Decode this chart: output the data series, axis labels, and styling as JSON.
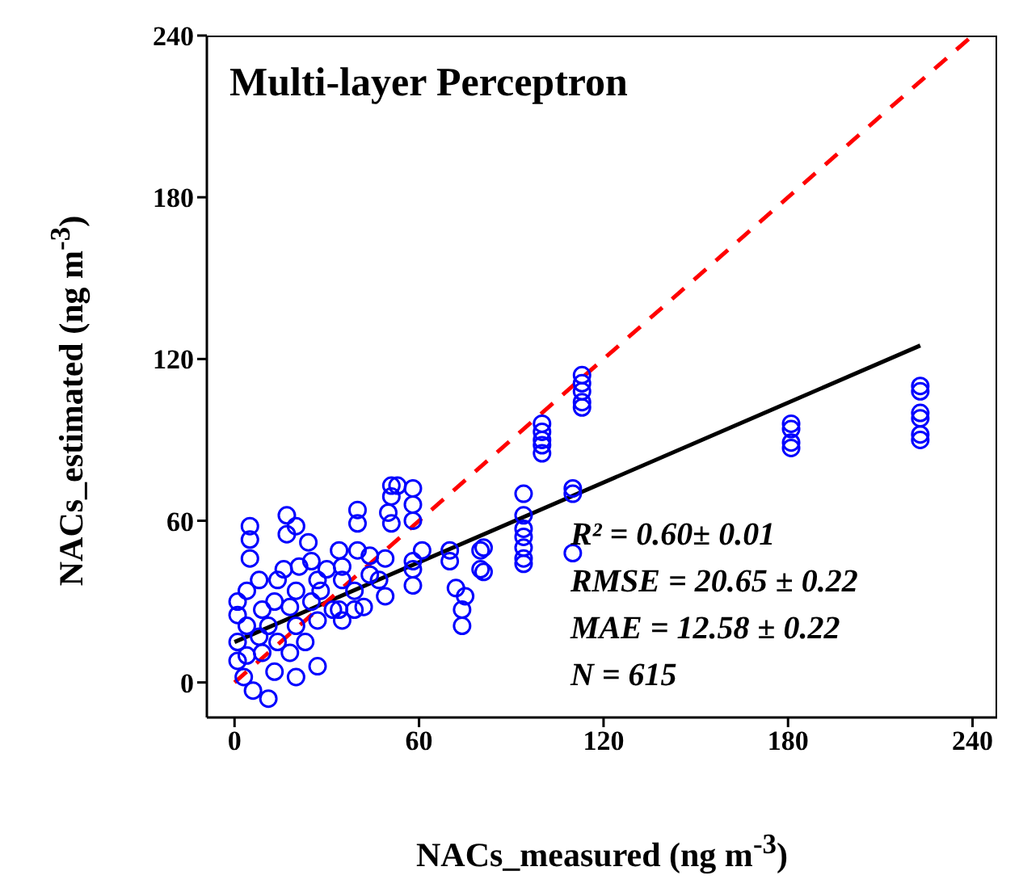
{
  "chart_data": {
    "type": "scatter",
    "title": "Multi-layer Perceptron",
    "xlabel": "NACs_measured (ng m$^{-3}$)",
    "ylabel": "NACs_estimated (ng m$^{-3}$)",
    "xlim": [
      -9,
      248
    ],
    "ylim": [
      -13,
      240
    ],
    "xticks": [
      0,
      60,
      120,
      180,
      240
    ],
    "yticks": [
      0,
      60,
      120,
      180,
      240
    ],
    "grid": false,
    "legend": false,
    "annotations": [
      "R² = 0.60± 0.01",
      "RMSE = 20.65 ± 0.22",
      "MAE = 12.58 ± 0.22",
      "N = 615"
    ],
    "series": [
      {
        "marker": "circle",
        "color": "#0000ff",
        "x": [
          223,
          223,
          223,
          223,
          223,
          223,
          181,
          181,
          181,
          181,
          113,
          113,
          113,
          113,
          113,
          100,
          100,
          100,
          100,
          100,
          110,
          110,
          110,
          94,
          94,
          94,
          94,
          94,
          94,
          94,
          81,
          81,
          5,
          5,
          5,
          17,
          20,
          17,
          40,
          40,
          51,
          53,
          58,
          51,
          58,
          50,
          58,
          51,
          61,
          58,
          58,
          58,
          47,
          49,
          49,
          70,
          70,
          80,
          80,
          72,
          75,
          74,
          74,
          34,
          35,
          40,
          35,
          39,
          32,
          39,
          35,
          24,
          25,
          21,
          16,
          27,
          20,
          25,
          18,
          27,
          20,
          23,
          18,
          27,
          20,
          1,
          4,
          1,
          4,
          1,
          1,
          3,
          6,
          11,
          9,
          11,
          13,
          8,
          14,
          9,
          13,
          4,
          8,
          14,
          42,
          44,
          28,
          30,
          44,
          34
        ],
        "values": [
          110,
          108,
          100,
          98,
          92,
          90,
          96,
          94,
          89,
          87,
          114,
          111,
          108,
          104,
          102,
          96,
          93,
          90,
          88,
          85,
          72,
          70,
          48,
          70,
          62,
          57,
          54,
          50,
          46,
          44,
          50,
          41,
          58,
          53,
          46,
          62,
          58,
          55,
          64,
          59,
          73,
          73,
          72,
          69,
          66,
          63,
          60,
          59,
          49,
          45,
          36,
          42,
          38,
          46,
          32,
          49,
          45,
          49,
          42,
          35,
          32,
          27,
          21,
          49,
          43,
          49,
          38,
          34,
          27,
          27,
          23,
          52,
          45,
          43,
          42,
          38,
          34,
          30,
          28,
          23,
          21,
          15,
          11,
          6,
          2,
          30,
          34,
          25,
          21,
          15,
          8,
          2,
          -3,
          -6,
          27,
          21,
          30,
          38,
          38,
          11,
          4,
          10,
          17,
          15,
          28,
          40,
          34,
          42,
          47,
          27
        ]
      },
      {
        "type": "line",
        "color": "#000000",
        "line_style": "solid",
        "marker": "none",
        "x": [
          0,
          223
        ],
        "values": [
          15,
          125
        ]
      },
      {
        "type": "line",
        "color": "#ff0000",
        "line_style": "dashed",
        "marker": "none",
        "x": [
          0,
          240
        ],
        "values": [
          0,
          240
        ]
      }
    ]
  }
}
